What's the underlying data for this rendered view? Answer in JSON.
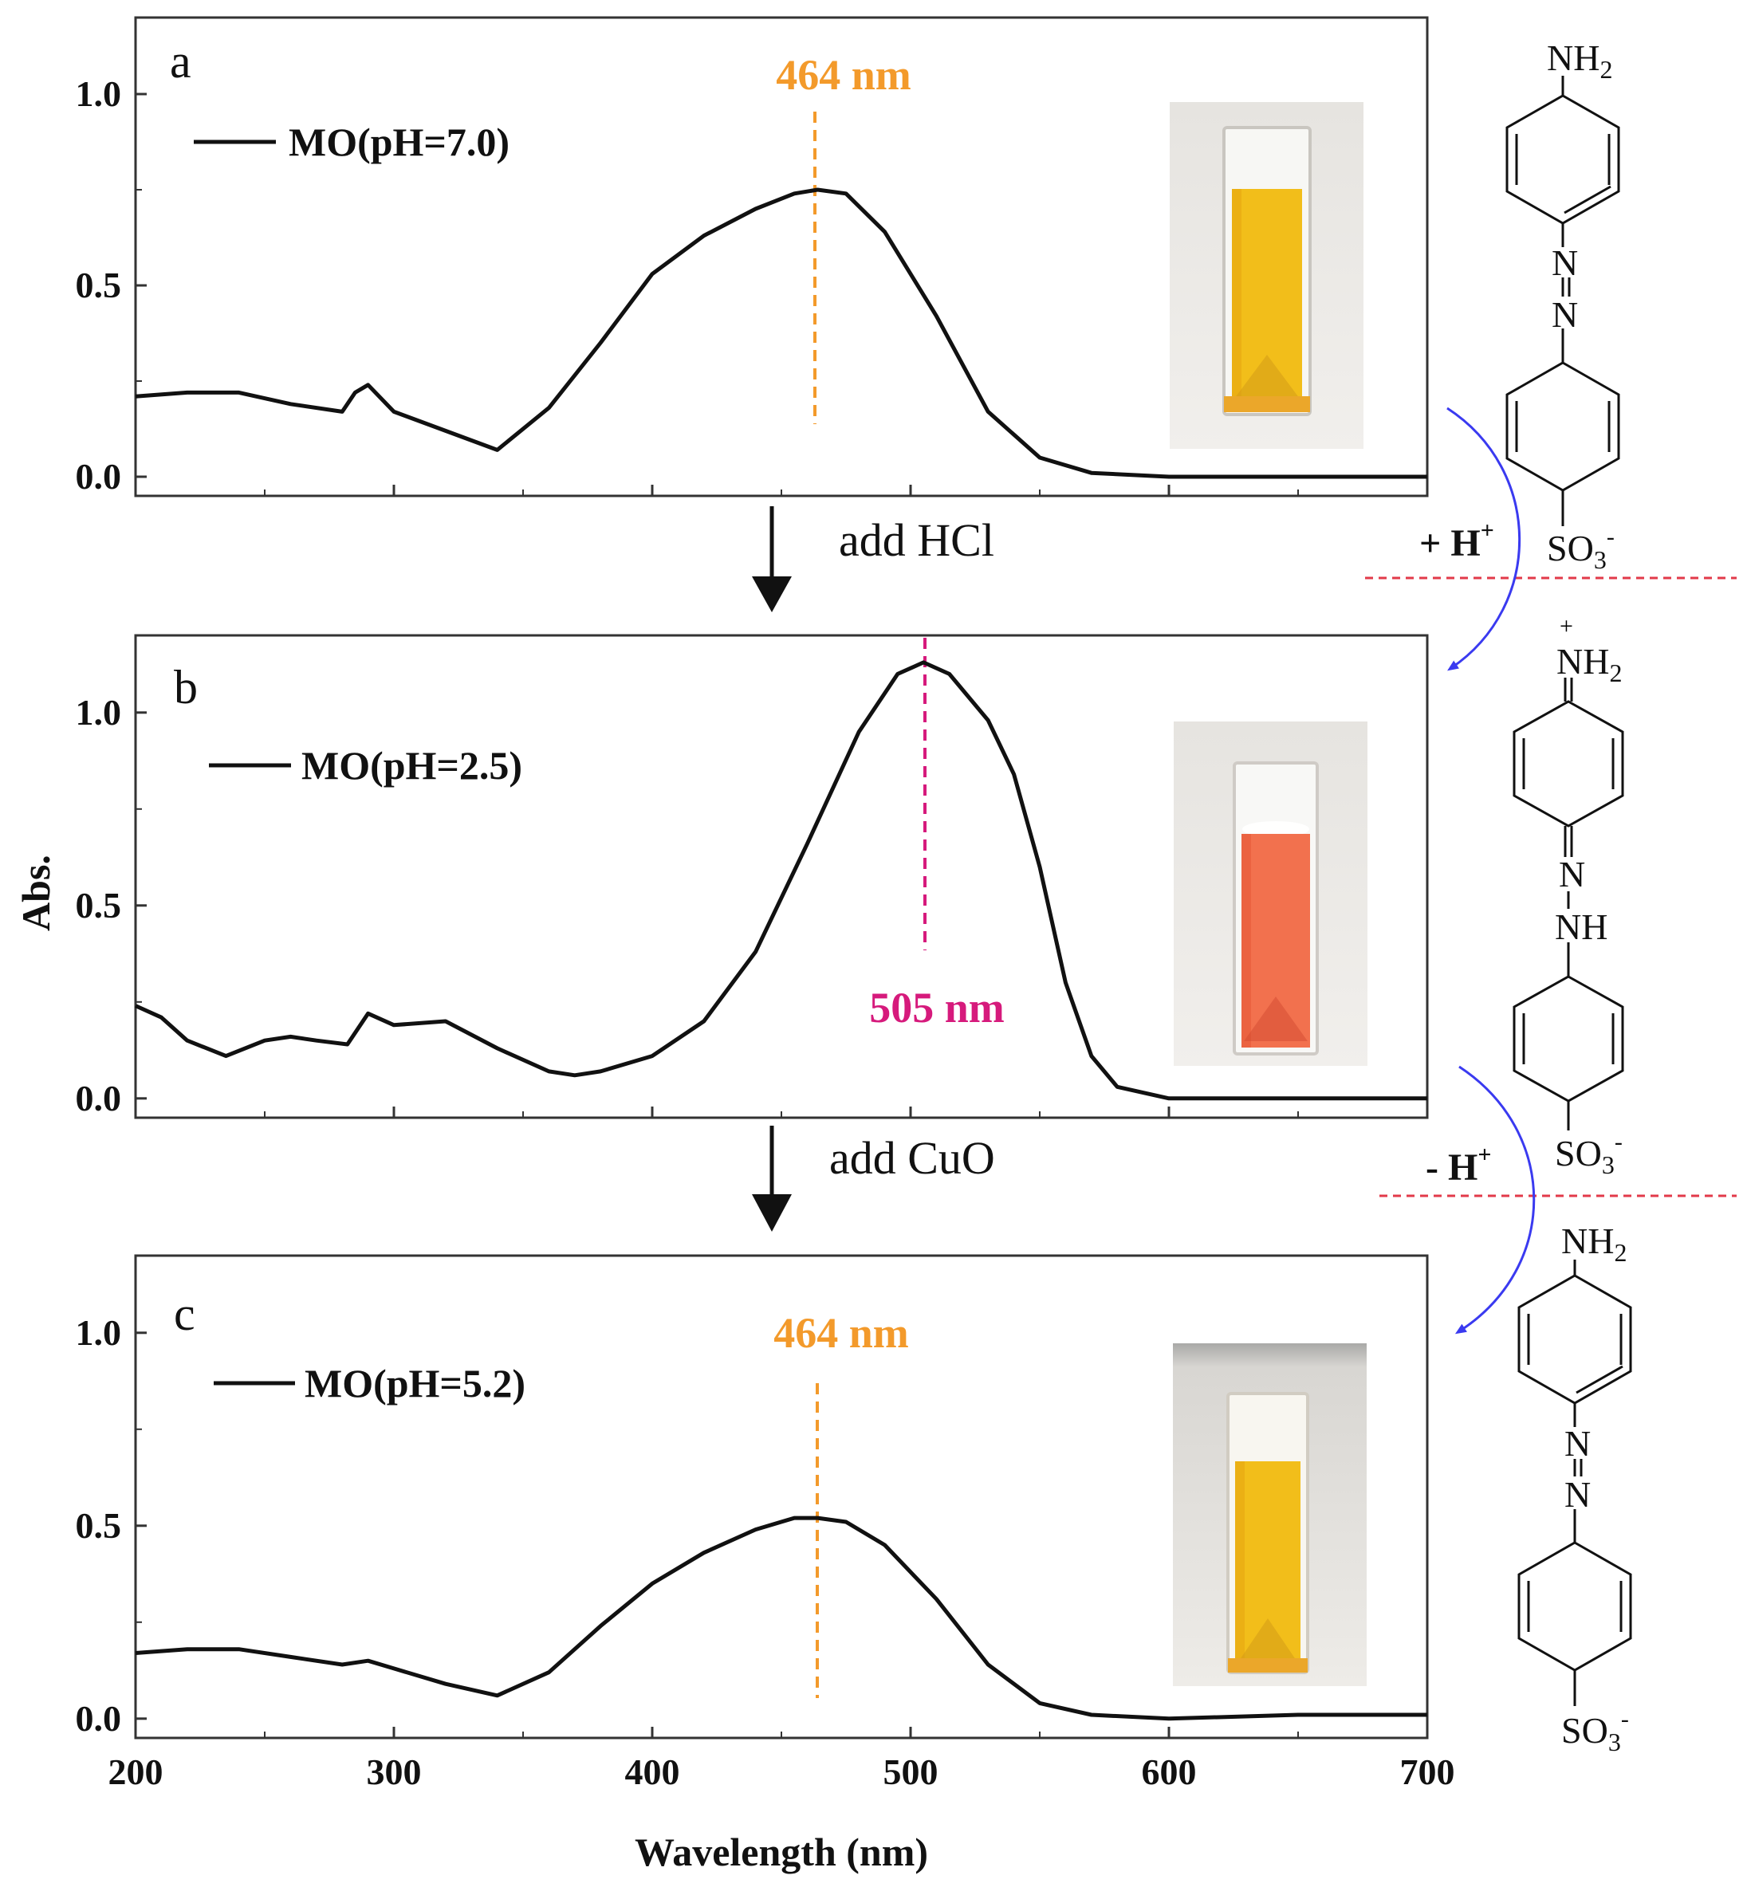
{
  "figure": {
    "ylabel": "Abs.",
    "xlabel": "Wavelength (nm)",
    "colors": {
      "curve": "#111111",
      "peak_orange": "#f39a2b",
      "peak_magenta": "#d61a7c",
      "transition_arrow": "#3a3af0",
      "divider": "#e23a4a",
      "cuvette_yellow": "#f2be1a",
      "cuvette_red": "#f2714e"
    }
  },
  "steps": {
    "step1": "add HCl",
    "step2": "add CuO"
  },
  "structures": {
    "nh2": "NH",
    "two": "2",
    "n": "N",
    "nh": "NH",
    "so3": "SO",
    "three": "3",
    "minus": "-",
    "plus": "+",
    "protonation": "+ H",
    "deprotonation": "- H"
  },
  "chart_data": [
    {
      "type": "line",
      "panel": "a",
      "legend": "MO(pH=7.0)",
      "peak_label": "464 nm",
      "peak_wavelength": 464,
      "xlim": [
        200,
        700
      ],
      "ylim": [
        -0.05,
        1.2
      ],
      "xticks": [
        200,
        300,
        400,
        500,
        600,
        700
      ],
      "yticks": [
        "0.0",
        "0.5",
        "1.0"
      ],
      "x": [
        200,
        220,
        240,
        260,
        280,
        285,
        290,
        300,
        320,
        340,
        360,
        380,
        400,
        420,
        440,
        455,
        464,
        475,
        490,
        510,
        530,
        550,
        570,
        600,
        650,
        700
      ],
      "y": [
        0.21,
        0.22,
        0.22,
        0.19,
        0.17,
        0.22,
        0.24,
        0.17,
        0.12,
        0.07,
        0.18,
        0.35,
        0.53,
        0.63,
        0.7,
        0.74,
        0.75,
        0.74,
        0.64,
        0.42,
        0.17,
        0.05,
        0.01,
        0.0,
        0.0,
        0.0
      ]
    },
    {
      "type": "line",
      "panel": "b",
      "legend": "MO(pH=2.5)",
      "peak_label": "505 nm",
      "peak_wavelength": 505,
      "xlim": [
        200,
        700
      ],
      "ylim": [
        -0.05,
        1.2
      ],
      "xticks": [
        200,
        300,
        400,
        500,
        600,
        700
      ],
      "yticks": [
        "0.0",
        "0.5",
        "1.0"
      ],
      "x": [
        200,
        210,
        220,
        235,
        250,
        260,
        270,
        282,
        290,
        300,
        320,
        340,
        360,
        370,
        380,
        400,
        420,
        440,
        460,
        480,
        495,
        505,
        515,
        530,
        540,
        550,
        560,
        570,
        580,
        600,
        650,
        700
      ],
      "y": [
        0.24,
        0.21,
        0.15,
        0.11,
        0.15,
        0.16,
        0.15,
        0.14,
        0.22,
        0.19,
        0.2,
        0.13,
        0.07,
        0.06,
        0.07,
        0.11,
        0.2,
        0.38,
        0.66,
        0.95,
        1.1,
        1.13,
        1.1,
        0.98,
        0.84,
        0.6,
        0.3,
        0.11,
        0.03,
        0.0,
        0.0,
        0.0
      ]
    },
    {
      "type": "line",
      "panel": "c",
      "legend": "MO(pH=5.2)",
      "peak_label": "464 nm",
      "peak_wavelength": 464,
      "xlim": [
        200,
        700
      ],
      "ylim": [
        -0.05,
        1.2
      ],
      "xticks": [
        200,
        300,
        400,
        500,
        600,
        700
      ],
      "yticks": [
        "0.0",
        "0.5",
        "1.0"
      ],
      "x": [
        200,
        220,
        240,
        260,
        280,
        290,
        300,
        320,
        340,
        360,
        380,
        400,
        420,
        440,
        455,
        464,
        475,
        490,
        510,
        530,
        550,
        570,
        600,
        650,
        700
      ],
      "y": [
        0.17,
        0.18,
        0.18,
        0.16,
        0.14,
        0.15,
        0.13,
        0.09,
        0.06,
        0.12,
        0.24,
        0.35,
        0.43,
        0.49,
        0.52,
        0.52,
        0.51,
        0.45,
        0.31,
        0.14,
        0.04,
        0.01,
        0.0,
        0.01,
        0.01
      ]
    }
  ]
}
